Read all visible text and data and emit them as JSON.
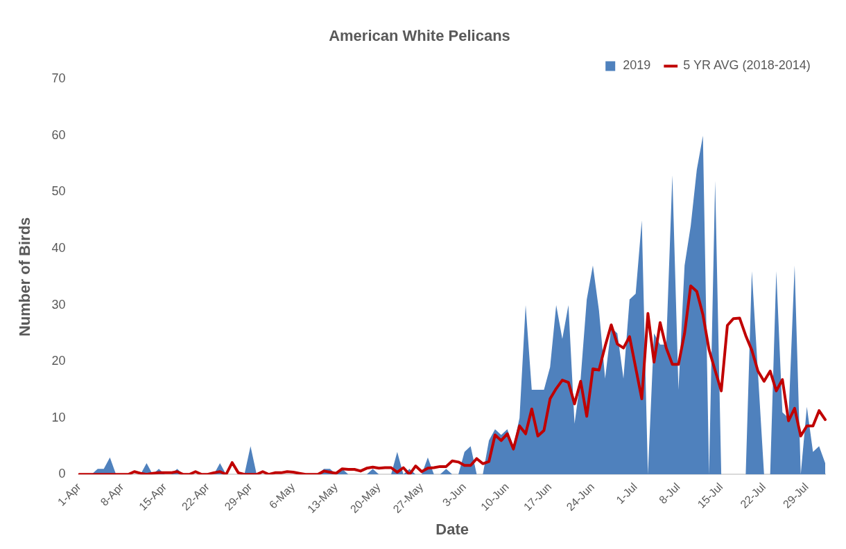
{
  "chart_data": {
    "type": "area",
    "title": "American White Pelicans",
    "xlabel": "Date",
    "ylabel": "Number of Birds",
    "categories": [
      "1-Apr",
      null,
      null,
      null,
      null,
      null,
      null,
      "8-Apr",
      null,
      null,
      null,
      null,
      null,
      null,
      "15-Apr",
      null,
      null,
      null,
      null,
      null,
      null,
      "22-Apr",
      null,
      null,
      null,
      null,
      null,
      null,
      "29-Apr",
      null,
      null,
      null,
      null,
      null,
      null,
      "6-May",
      null,
      null,
      null,
      null,
      null,
      null,
      "13-May",
      null,
      null,
      null,
      null,
      null,
      null,
      "20-May",
      null,
      null,
      null,
      null,
      null,
      null,
      "27-May",
      null,
      null,
      null,
      null,
      null,
      null,
      "3-Jun",
      null,
      null,
      null,
      null,
      null,
      null,
      "10-Jun",
      null,
      null,
      null,
      null,
      null,
      null,
      "17-Jun",
      null,
      null,
      null,
      null,
      null,
      null,
      "24-Jun",
      null,
      null,
      null,
      null,
      null,
      null,
      "1-Jul",
      null,
      null,
      null,
      null,
      null,
      null,
      "8-Jul",
      null,
      null,
      null,
      null,
      null,
      null,
      "15-Jul",
      null,
      null,
      null,
      null,
      null,
      null,
      "22-Jul",
      null,
      null,
      null,
      null,
      null,
      null,
      "29-Jul",
      null,
      null,
      null
    ],
    "series": [
      {
        "name": "2019",
        "color": "#4f81bd",
        "values": [
          0,
          0,
          0,
          1,
          1,
          3,
          0,
          0,
          0,
          0,
          0,
          2,
          0,
          1,
          0,
          0,
          1,
          0,
          0,
          0,
          0,
          0,
          0,
          2,
          0,
          0,
          0,
          0,
          5,
          0,
          0,
          0,
          0,
          0,
          0,
          0,
          0,
          0,
          0,
          0,
          1,
          1,
          0,
          1,
          0,
          0,
          0,
          0,
          1,
          0,
          0,
          0,
          4,
          0,
          1,
          0,
          0,
          3,
          0,
          0,
          1,
          0,
          0,
          4,
          5,
          0,
          0,
          6,
          8,
          7,
          8,
          5,
          10,
          30,
          15,
          15,
          15,
          19,
          30,
          24,
          30,
          9,
          17,
          31,
          37,
          29,
          17,
          26,
          25,
          17,
          31,
          32,
          45,
          0,
          25,
          23,
          23,
          53,
          15,
          37,
          44,
          54,
          60,
          0,
          52,
          0,
          0,
          0,
          0,
          0,
          36,
          18,
          0,
          0,
          36,
          11,
          10,
          37,
          0,
          12,
          4,
          5,
          2
        ]
      },
      {
        "name": "5 YR AVG (2018-2014)",
        "type": "line",
        "color": "#c00000",
        "values": [
          0,
          0,
          0,
          0,
          0,
          0,
          0,
          0,
          0,
          0.5,
          0.2,
          0,
          0.2,
          0.3,
          0.3,
          0.3,
          0.5,
          0,
          0,
          0.5,
          0,
          0,
          0.3,
          0.5,
          0,
          2.1,
          0.3,
          0,
          0,
          0,
          0.5,
          0,
          0.3,
          0.3,
          0.5,
          0.4,
          0.2,
          0,
          0,
          0,
          0.6,
          0.4,
          0.2,
          1,
          0.9,
          0.9,
          0.6,
          1.1,
          1.3,
          1.1,
          1.2,
          1.2,
          0.4,
          1.2,
          0,
          1.5,
          0.5,
          1.1,
          1.2,
          1.4,
          1.4,
          2.4,
          2.2,
          1.6,
          1.6,
          2.8,
          1.9,
          2.3,
          7,
          6,
          7.2,
          4.5,
          8.6,
          7.2,
          11.6,
          6.8,
          7.8,
          13.4,
          15.2,
          16.7,
          16.3,
          12.5,
          16.5,
          10.3,
          18.7,
          18.5,
          22.7,
          26.5,
          23.1,
          22.4,
          24.4,
          18.9,
          13.4,
          28.5,
          19.9,
          26.9,
          22.4,
          19.5,
          19.5,
          25,
          33.4,
          32.4,
          28.3,
          22.1,
          18.4,
          14.8,
          26.4,
          27.6,
          27.7,
          24.6,
          22,
          18.3,
          16.5,
          18.3,
          14.8,
          16.8,
          9.5,
          11.7,
          6.8,
          8.6,
          8.6,
          11.3,
          9.7
        ]
      }
    ],
    "ylim": [
      0,
      70
    ],
    "yticks": [
      0,
      10,
      20,
      30,
      40,
      50,
      60,
      70
    ],
    "grid": false,
    "legend": "top right",
    "marker": "none",
    "line_style": "solid"
  }
}
